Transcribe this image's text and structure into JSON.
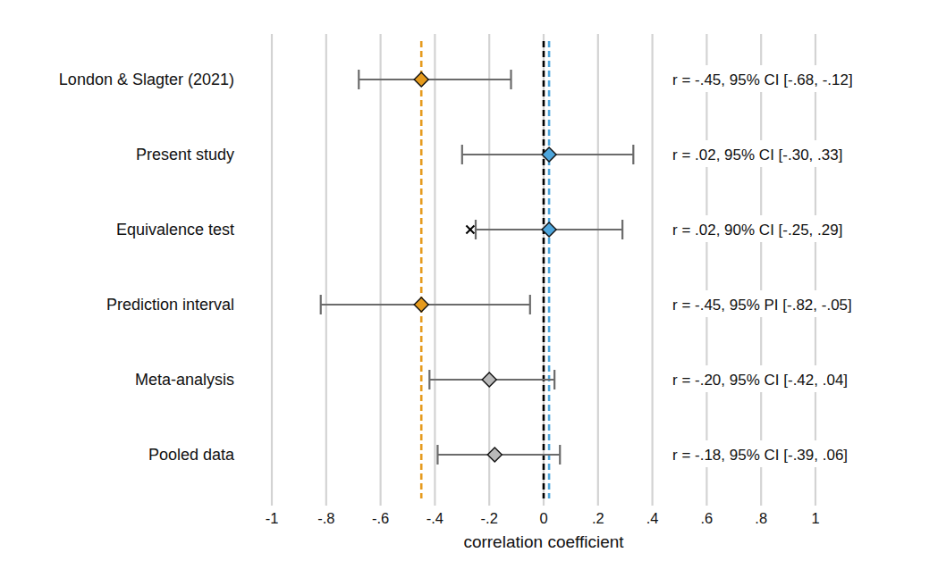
{
  "chart_data": {
    "type": "forest",
    "categories": [
      "London & Slagter (2021)",
      "Present study",
      "Equivalence test",
      "Prediction interval",
      "Meta-analysis",
      "Pooled data"
    ],
    "values": [
      -0.45,
      0.02,
      0.02,
      -0.45,
      -0.2,
      -0.18
    ],
    "lower": [
      -0.68,
      -0.3,
      -0.25,
      -0.82,
      -0.42,
      -0.39
    ],
    "upper": [
      -0.12,
      0.33,
      0.29,
      -0.05,
      0.04,
      0.06
    ],
    "colors": [
      "#e69b1e",
      "#4ea6dc",
      "#4ea6dc",
      "#e69b1e",
      "#b9b9b9",
      "#b9b9b9"
    ],
    "marker": "diamond",
    "annotations": [
      "r = -.45, 95% CI [-.68, -.12]",
      "r = .02, 95% CI [-.30, .33]",
      "r = .02, 90% CI [-.25, .29]",
      "r = -.45, 95% PI [-.82, -.05]",
      "r = -.20, 95% CI [-.42, .04]",
      "r = -.18, 95% CI [-.39, .06]"
    ],
    "xlabel": "correlation coefficient",
    "xlim": [
      -1,
      1
    ],
    "xticks": [
      -1,
      {
        "value": -0.8,
        "label": "-.8"
      },
      {
        "value": -0.6,
        "label": "-.6"
      },
      {
        "value": -0.4,
        "label": "-.4"
      },
      {
        "value": -0.2,
        "label": "-.2"
      },
      0,
      {
        "value": 0.2,
        "label": ".2"
      },
      {
        "value": 0.4,
        "label": ".4"
      },
      {
        "value": 0.6,
        "label": ".6"
      },
      {
        "value": 0.8,
        "label": ".8"
      },
      1
    ],
    "grid": true,
    "reference_lines": [
      {
        "value": -0.45,
        "color": "#e69b1e",
        "line_style": "dashed"
      },
      {
        "value": 0,
        "color": "#000000",
        "line_style": "dashed"
      },
      {
        "value": 0.02,
        "color": "#4ea6dc",
        "line_style": "dashed"
      }
    ],
    "equivalence_bound": {
      "value": -0.27,
      "row": 2,
      "marker": "x"
    }
  }
}
